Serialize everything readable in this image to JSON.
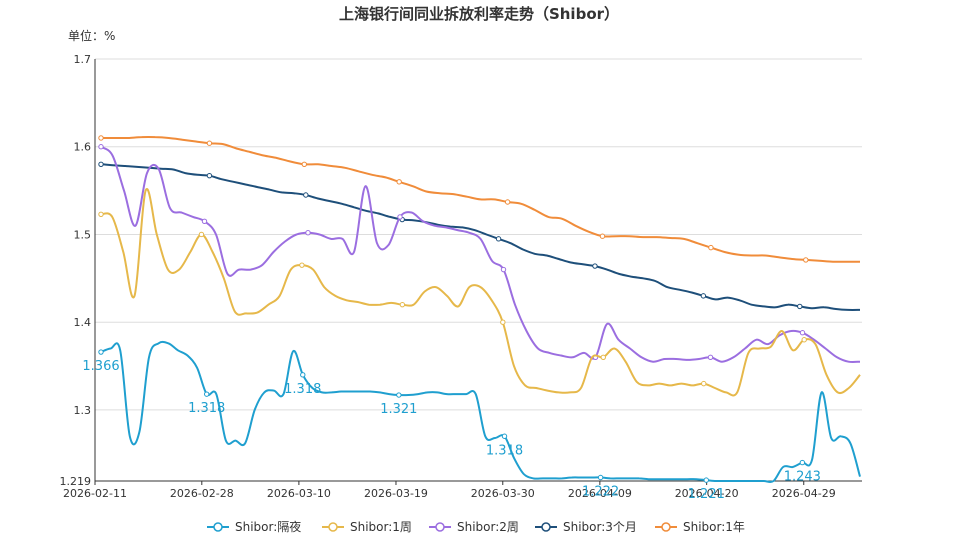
{
  "chart_data": {
    "type": "line",
    "title": "上海银行间同业拆放利率走势（Shibor）",
    "unit_label": "单位：%",
    "ylim": [
      1.219,
      1.7
    ],
    "y_ticks": [
      "1.7",
      "1.6",
      "1.5",
      "1.4",
      "1.3",
      "1.219"
    ],
    "x_ticks": [
      "2026-02-11",
      "2026-02-28",
      "2026-03-10",
      "2026-03-19",
      "2026-03-30",
      "2026-04-09",
      "2026-04-20",
      "2026-04-29"
    ],
    "grid": true,
    "legend_position": "bottom",
    "x_index": [
      0,
      1,
      2,
      3,
      4,
      5,
      6,
      7,
      8,
      9,
      10,
      11,
      12,
      13,
      14,
      15,
      16,
      17,
      18,
      19,
      20,
      21,
      22,
      23,
      24,
      25,
      26,
      27,
      28,
      29,
      30,
      31,
      32,
      33,
      34,
      35,
      36,
      37,
      38,
      39,
      40,
      41,
      42,
      43,
      44,
      45,
      46,
      47,
      48,
      49,
      50,
      51,
      52,
      53,
      54,
      55,
      56,
      57,
      58,
      59,
      60,
      61,
      62,
      63,
      64,
      65,
      66,
      67,
      68,
      69,
      70,
      71,
      72,
      73,
      74,
      75,
      76,
      77,
      78,
      79
    ],
    "series": [
      {
        "name": "Shibor:隔夜",
        "color": "#1f9fcf",
        "values": [
          1.366,
          1.37,
          1.368,
          1.27,
          1.275,
          1.36,
          1.376,
          1.376,
          1.368,
          1.362,
          1.348,
          1.318,
          1.318,
          1.265,
          1.265,
          1.262,
          1.3,
          1.32,
          1.322,
          1.318,
          1.367,
          1.34,
          1.325,
          1.32,
          1.32,
          1.321,
          1.321,
          1.321,
          1.321,
          1.32,
          1.318,
          1.317,
          1.317,
          1.318,
          1.32,
          1.32,
          1.318,
          1.318,
          1.318,
          1.318,
          1.27,
          1.268,
          1.27,
          1.245,
          1.227,
          1.222,
          1.222,
          1.222,
          1.222,
          1.223,
          1.223,
          1.223,
          1.223,
          1.222,
          1.222,
          1.222,
          1.222,
          1.221,
          1.221,
          1.221,
          1.221,
          1.221,
          1.221,
          1.22,
          1.219,
          1.219,
          1.219,
          1.219,
          1.219,
          1.219,
          1.219,
          1.235,
          1.235,
          1.24,
          1.243,
          1.32,
          1.268,
          1.27,
          1.262,
          1.224
        ]
      },
      {
        "name": "Shibor:1周",
        "color": "#e6b84a",
        "values": [
          1.523,
          1.52,
          1.48,
          1.43,
          1.55,
          1.5,
          1.46,
          1.46,
          1.48,
          1.5,
          1.48,
          1.45,
          1.412,
          1.41,
          1.411,
          1.42,
          1.43,
          1.46,
          1.465,
          1.46,
          1.44,
          1.43,
          1.425,
          1.423,
          1.42,
          1.42,
          1.422,
          1.42,
          1.42,
          1.435,
          1.44,
          1.43,
          1.418,
          1.44,
          1.44,
          1.425,
          1.4,
          1.35,
          1.328,
          1.325,
          1.322,
          1.32,
          1.32,
          1.325,
          1.36,
          1.36,
          1.37,
          1.355,
          1.332,
          1.328,
          1.33,
          1.328,
          1.33,
          1.328,
          1.33,
          1.325,
          1.32,
          1.32,
          1.365,
          1.37,
          1.372,
          1.39,
          1.368,
          1.38,
          1.375,
          1.34,
          1.32,
          1.325,
          1.34
        ]
      },
      {
        "name": "Shibor:2周",
        "color": "#9b6ee0",
        "values": [
          1.6,
          1.59,
          1.55,
          1.51,
          1.57,
          1.575,
          1.53,
          1.525,
          1.52,
          1.515,
          1.5,
          1.455,
          1.46,
          1.46,
          1.465,
          1.48,
          1.492,
          1.5,
          1.502,
          1.5,
          1.495,
          1.495,
          1.48,
          1.555,
          1.49,
          1.488,
          1.52,
          1.525,
          1.515,
          1.51,
          1.508,
          1.505,
          1.502,
          1.495,
          1.47,
          1.46,
          1.42,
          1.39,
          1.37,
          1.365,
          1.362,
          1.36,
          1.365,
          1.36,
          1.398,
          1.38,
          1.37,
          1.36,
          1.355,
          1.358,
          1.358,
          1.357,
          1.358,
          1.36,
          1.355,
          1.36,
          1.37,
          1.38,
          1.375,
          1.385,
          1.39,
          1.388,
          1.38,
          1.37,
          1.36,
          1.355,
          1.355
        ]
      },
      {
        "name": "Shibor:3个月",
        "color": "#1e4f7a",
        "values": [
          1.58,
          1.579,
          1.578,
          1.577,
          1.576,
          1.575,
          1.574,
          1.57,
          1.568,
          1.567,
          1.563,
          1.56,
          1.557,
          1.554,
          1.551,
          1.548,
          1.547,
          1.545,
          1.541,
          1.538,
          1.535,
          1.531,
          1.527,
          1.524,
          1.52,
          1.517,
          1.516,
          1.514,
          1.511,
          1.509,
          1.508,
          1.505,
          1.5,
          1.495,
          1.49,
          1.483,
          1.478,
          1.476,
          1.472,
          1.468,
          1.466,
          1.464,
          1.46,
          1.455,
          1.452,
          1.45,
          1.447,
          1.44,
          1.437,
          1.434,
          1.43,
          1.426,
          1.428,
          1.425,
          1.42,
          1.418,
          1.417,
          1.42,
          1.418,
          1.416,
          1.417,
          1.415,
          1.414,
          1.414
        ]
      },
      {
        "name": "Shibor:1年",
        "color": "#f08c3a",
        "values": [
          1.61,
          1.61,
          1.61,
          1.611,
          1.611,
          1.61,
          1.608,
          1.606,
          1.604,
          1.603,
          1.598,
          1.594,
          1.59,
          1.587,
          1.583,
          1.58,
          1.58,
          1.578,
          1.576,
          1.572,
          1.568,
          1.565,
          1.56,
          1.555,
          1.549,
          1.547,
          1.546,
          1.543,
          1.54,
          1.54,
          1.537,
          1.535,
          1.528,
          1.52,
          1.518,
          1.51,
          1.503,
          1.498,
          1.498,
          1.498,
          1.497,
          1.497,
          1.496,
          1.495,
          1.49,
          1.485,
          1.48,
          1.477,
          1.476,
          1.476,
          1.474,
          1.472,
          1.471,
          1.47,
          1.469,
          1.469,
          1.469
        ]
      }
    ],
    "data_labels": [
      {
        "series": 0,
        "text": "1.366"
      },
      {
        "series": 0,
        "text": "1.318"
      },
      {
        "series": 0,
        "text": "1.318"
      },
      {
        "series": 0,
        "text": "1.321"
      },
      {
        "series": 0,
        "text": "1.318"
      },
      {
        "series": 0,
        "text": "1.222"
      },
      {
        "series": 0,
        "text": "1.221"
      },
      {
        "series": 0,
        "text": "1.243"
      }
    ]
  }
}
